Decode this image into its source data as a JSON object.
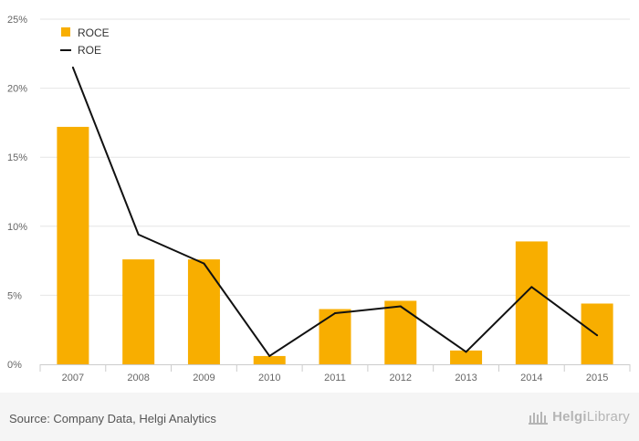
{
  "chart_data": {
    "type": "bar",
    "categories": [
      "2007",
      "2008",
      "2009",
      "2010",
      "2011",
      "2012",
      "2013",
      "2014",
      "2015"
    ],
    "series": [
      {
        "name": "ROCE",
        "type": "bar",
        "color": "#f8ae00",
        "values": [
          17.2,
          7.6,
          7.6,
          0.6,
          4.0,
          4.6,
          1.0,
          8.9,
          4.4
        ]
      },
      {
        "name": "ROE",
        "type": "line",
        "color": "#111111",
        "values": [
          21.5,
          9.4,
          7.3,
          0.6,
          3.7,
          4.2,
          0.9,
          5.6,
          2.1
        ]
      }
    ],
    "title": "",
    "xlabel": "",
    "ylabel": "",
    "ylim": [
      0,
      25
    ],
    "yticks": [
      0,
      5,
      10,
      15,
      20,
      25
    ],
    "ytick_labels": [
      "0%",
      "5%",
      "10%",
      "15%",
      "20%",
      "25%"
    ],
    "grid": true,
    "legend": "top-left"
  },
  "footer": {
    "source": "Source: Company Data, Helgi Analytics",
    "brand_name": "Helgi",
    "brand_suffix": "Library"
  }
}
